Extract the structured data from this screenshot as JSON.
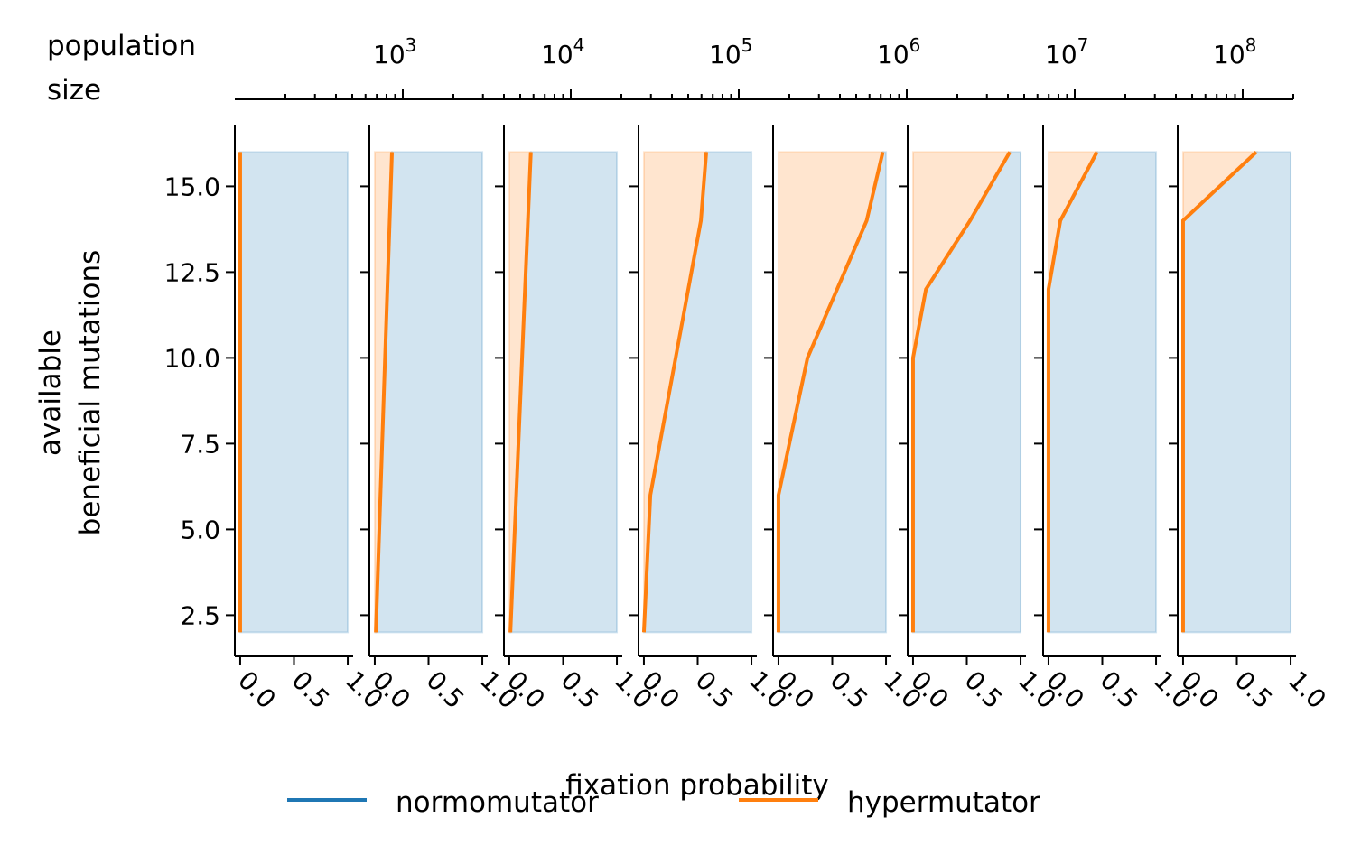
{
  "chart_data": {
    "type": "area",
    "top_axis": {
      "label_line1": "population",
      "label_line2": "size",
      "scale": "log",
      "tick_values": [
        1000,
        10000,
        100000,
        1000000,
        10000000,
        100000000
      ],
      "tick_base": "10",
      "tick_exponents": [
        "3",
        "4",
        "5",
        "6",
        "7",
        "8"
      ],
      "range": [
        100,
        200000000
      ]
    },
    "ylabel_line1": "available",
    "ylabel_line2": "beneficial mutations",
    "xlabel": "fixation probability",
    "ylim": [
      1.3,
      16.8
    ],
    "yticks": [
      "2.5",
      "5.0",
      "7.5",
      "10.0",
      "12.5",
      "15.0"
    ],
    "xlim": [
      -0.05,
      1.05
    ],
    "xticks": [
      "0.0",
      "0.5",
      "1.0"
    ],
    "legend": {
      "placement": "bottom-center",
      "entries": [
        {
          "label": "normomutator",
          "color": "#1f77b4"
        },
        {
          "label": "hypermutator",
          "color": "#ff7f0e"
        }
      ]
    },
    "colors": {
      "normomutator_fill": "#1f77b4",
      "hypermutator_fill": "#ff7f0e",
      "hypermutator_line": "#ff7f0e"
    },
    "panels": [
      {
        "points": [
          [
            0.0,
            2
          ],
          [
            0.0,
            16
          ]
        ]
      },
      {
        "points": [
          [
            0.01,
            2
          ],
          [
            0.16,
            16
          ]
        ]
      },
      {
        "points": [
          [
            0.01,
            2
          ],
          [
            0.2,
            16
          ]
        ]
      },
      {
        "points": [
          [
            0.0,
            2
          ],
          [
            0.06,
            6
          ],
          [
            0.53,
            14
          ],
          [
            0.58,
            16
          ]
        ]
      },
      {
        "points": [
          [
            0.0,
            2
          ],
          [
            0.0,
            6
          ],
          [
            0.27,
            10
          ],
          [
            0.82,
            14
          ],
          [
            0.97,
            16
          ]
        ]
      },
      {
        "points": [
          [
            0.0,
            2
          ],
          [
            0.0,
            10
          ],
          [
            0.12,
            12
          ],
          [
            0.53,
            14
          ],
          [
            0.9,
            16
          ]
        ]
      },
      {
        "points": [
          [
            0.0,
            2
          ],
          [
            0.0,
            12
          ],
          [
            0.11,
            14
          ],
          [
            0.45,
            16
          ]
        ]
      },
      {
        "points": [
          [
            0.0,
            2
          ],
          [
            0.0,
            14
          ],
          [
            0.68,
            16
          ]
        ]
      }
    ]
  }
}
